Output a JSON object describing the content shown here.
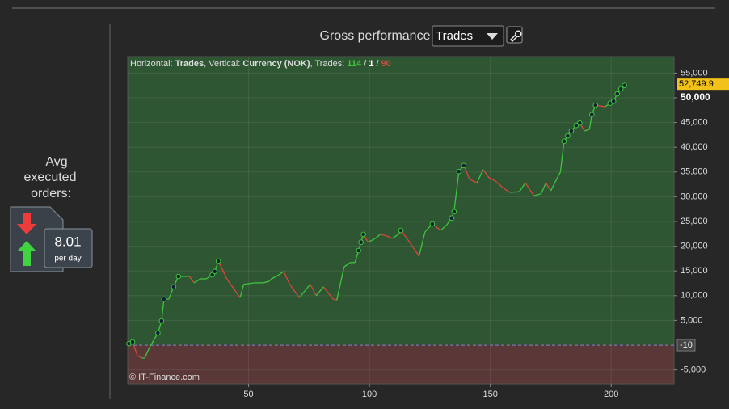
{
  "header": {
    "title": "Gross performance",
    "select": "Trades"
  },
  "summary": {
    "label_lines": [
      "Avg",
      "executed",
      "orders:"
    ],
    "value": "8.01",
    "unit": "per day"
  },
  "chart_data": {
    "type": "line",
    "info": {
      "horizontal_label": "Horizontal: ",
      "horizontal": "Trades",
      "vertical_label": ", Vertical: ",
      "vertical": "Currency (NOK)",
      "trades_label": ", Trades: ",
      "wins": "114",
      "separator": " / ",
      "even": "1",
      "losses": "90"
    },
    "watermark": "© IT-Finance.com",
    "x": [
      0.5,
      2,
      4,
      6,
      7,
      9,
      12.5,
      14,
      15,
      17,
      19,
      21,
      23,
      25.5,
      27.5,
      30,
      32.5,
      35,
      36,
      37.5,
      41,
      45,
      46.5,
      48,
      52.5,
      56,
      58.5,
      59.5,
      62.5,
      64.5,
      67,
      71,
      75.5,
      78,
      81,
      85,
      86.5,
      89.5,
      92,
      94,
      95.5,
      96.5,
      97.5,
      99.5,
      102.5,
      104.5,
      107,
      109.5,
      112,
      113,
      115.5,
      120.5,
      123,
      126,
      129.5,
      132,
      134,
      135,
      137,
      139,
      141.5,
      144.5,
      147,
      149.5,
      152,
      155,
      158,
      162,
      164.5,
      168,
      171,
      173,
      175,
      178,
      179,
      180.5,
      182,
      183.5,
      185.5,
      187,
      189,
      191,
      192,
      193.5,
      197.5,
      199.5,
      201,
      202.5,
      204,
      205.5
    ],
    "values": [
      300,
      650,
      -2100,
      -2600,
      -2600,
      -500,
      2450,
      4900,
      9300,
      9300,
      11800,
      13900,
      13900,
      13900,
      12600,
      13400,
      13400,
      14200,
      14900,
      17000,
      13400,
      10600,
      9600,
      12300,
      12600,
      12600,
      12900,
      13400,
      14200,
      14900,
      12300,
      9600,
      12300,
      10000,
      11800,
      9300,
      9100,
      15800,
      16700,
      16700,
      19100,
      20800,
      22400,
      20800,
      21600,
      22400,
      22100,
      21600,
      22400,
      23200,
      21600,
      18000,
      22900,
      24500,
      23200,
      24300,
      25700,
      27000,
      35100,
      36300,
      33500,
      32800,
      35500,
      33800,
      33200,
      31900,
      30900,
      31000,
      32800,
      30200,
      30600,
      32800,
      31200,
      34100,
      35000,
      41200,
      42300,
      43300,
      44400,
      44900,
      43300,
      43600,
      46600,
      48500,
      48200,
      48900,
      49300,
      50800,
      51800,
      52500
    ],
    "up_color": "#3ec43e",
    "down_color": "#d9473a",
    "above_color": "#2f5633",
    "below_color": "#5a3838",
    "xlim": [
      0,
      226
    ],
    "ylim": [
      -7840,
      58330
    ],
    "xticks": [
      50,
      100,
      150,
      200
    ],
    "yticks": [
      {
        "value": 55000,
        "label": "55,000"
      },
      {
        "value": 50000,
        "label": "50,000"
      },
      {
        "value": 45000,
        "label": "45,000"
      },
      {
        "value": 40000,
        "label": "40,000"
      },
      {
        "value": 35000,
        "label": "35,000"
      },
      {
        "value": 30000,
        "label": "30,000"
      },
      {
        "value": 25000,
        "label": "25,000"
      },
      {
        "value": 20000,
        "label": "20,000"
      },
      {
        "value": 15000,
        "label": "15,000"
      },
      {
        "value": 10000,
        "label": "10,000"
      },
      {
        "value": 5000,
        "label": "5,000"
      },
      {
        "value": -5000,
        "label": "-5,000"
      }
    ],
    "baseline": {
      "value": -10,
      "label": "-10"
    },
    "last_value": {
      "value": 52749.9,
      "label": "52,749.9"
    },
    "grid": true
  }
}
